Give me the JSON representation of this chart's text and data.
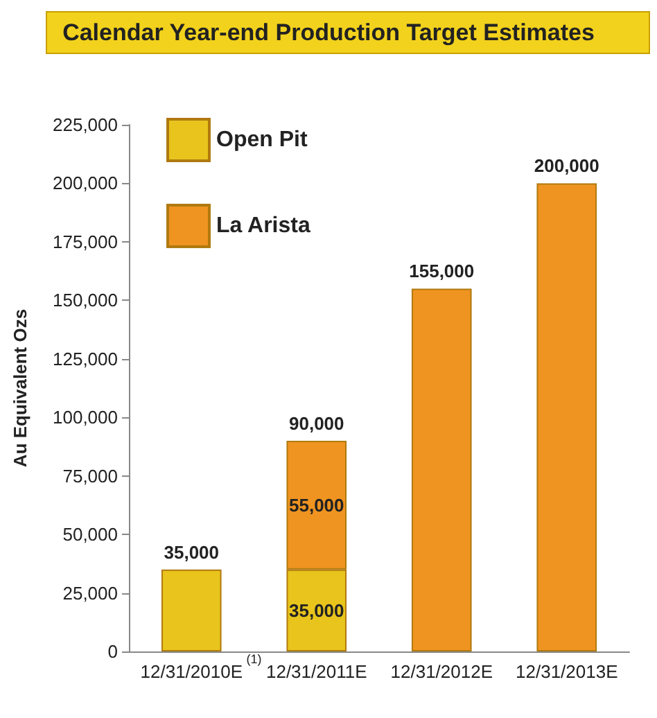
{
  "chart_data": {
    "type": "bar",
    "title": "Calendar Year-end Production Target Estimates",
    "ylabel": "Au Equivalent Ozs",
    "categories": [
      "12/31/2010E",
      "12/31/2011E",
      "12/31/2012E",
      "12/31/2013E"
    ],
    "stacked": true,
    "series": [
      {
        "name": "Open Pit",
        "color": "#e8c41c",
        "values": [
          35000,
          35000,
          null,
          null
        ],
        "value_labels": [
          null,
          "35,000",
          null,
          null
        ]
      },
      {
        "name": "La Arista",
        "color": "#ef9420",
        "values": [
          null,
          55000,
          155000,
          200000
        ],
        "value_labels": [
          null,
          "55,000",
          null,
          null
        ]
      }
    ],
    "totals": [
      "35,000",
      "90,000",
      "155,000",
      "200,000"
    ],
    "ylim": [
      0,
      225000
    ],
    "yticks": [
      0,
      {
        "value": 25000,
        "label": "25,000"
      },
      {
        "value": 50000,
        "label": "50,000"
      },
      {
        "value": 75000,
        "label": "75,000"
      },
      {
        "value": 100000,
        "label": "100,000"
      },
      {
        "value": 125000,
        "label": "125,000"
      },
      {
        "value": 150000,
        "label": "150,000"
      },
      {
        "value": 175000,
        "label": "175,000"
      },
      {
        "value": 200000,
        "label": "200,000"
      },
      {
        "value": 225000,
        "label": "225,000"
      }
    ],
    "grid": false,
    "legend": "top left",
    "annotations": [
      "(1)"
    ]
  }
}
